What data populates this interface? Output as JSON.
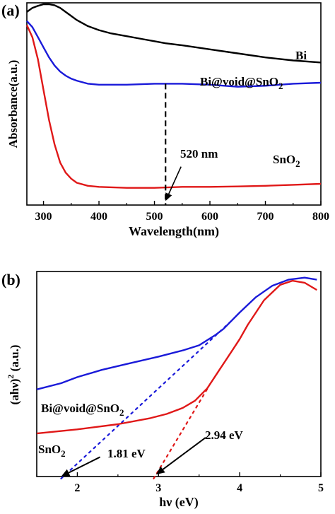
{
  "chart_data": [
    {
      "panel_label": "(a)",
      "type": "line",
      "xlabel": "Wavelength(nm)",
      "ylabel": "Absorbance(a.u.)",
      "xlim": [
        270,
        800
      ],
      "ylim": [
        0,
        1
      ],
      "xticks": [
        300,
        400,
        500,
        600,
        700,
        800
      ],
      "y_tick_labels": "none",
      "series": [
        {
          "name": "Bi",
          "color": "#000000",
          "x": [
            270,
            280,
            290,
            300,
            310,
            320,
            330,
            340,
            350,
            360,
            380,
            400,
            420,
            450,
            480,
            500,
            520,
            550,
            600,
            650,
            700,
            750,
            800
          ],
          "y": [
            0.955,
            0.975,
            0.985,
            0.993,
            0.993,
            0.988,
            0.975,
            0.955,
            0.935,
            0.915,
            0.885,
            0.865,
            0.85,
            0.835,
            0.82,
            0.81,
            0.8,
            0.79,
            0.77,
            0.75,
            0.73,
            0.715,
            0.705
          ]
        },
        {
          "name": "Bi@void@SnO2",
          "color": "#1a1ad9",
          "x": [
            270,
            280,
            290,
            300,
            310,
            320,
            330,
            340,
            350,
            360,
            380,
            400,
            450,
            500,
            550,
            600,
            650,
            700,
            750,
            800
          ],
          "y": [
            0.91,
            0.88,
            0.83,
            0.78,
            0.73,
            0.69,
            0.66,
            0.64,
            0.625,
            0.615,
            0.6,
            0.595,
            0.595,
            0.6,
            0.6,
            0.595,
            0.585,
            0.59,
            0.6,
            0.605
          ]
        },
        {
          "name": "SnO2",
          "color": "#e01818",
          "x": [
            270,
            280,
            290,
            300,
            310,
            320,
            330,
            340,
            350,
            360,
            380,
            400,
            450,
            500,
            550,
            600,
            650,
            700,
            750,
            800
          ],
          "y": [
            0.89,
            0.83,
            0.72,
            0.57,
            0.42,
            0.3,
            0.21,
            0.16,
            0.13,
            0.11,
            0.095,
            0.09,
            0.085,
            0.085,
            0.09,
            0.09,
            0.092,
            0.095,
            0.1,
            0.105
          ]
        }
      ],
      "annotations": {
        "dashed_line_x": 520,
        "dashed_line_top_y": 0.6,
        "dashed_line_bottom_y": 0.0,
        "arrow_tip": [
          520,
          0.02
        ],
        "arrow_from": [
          548,
          0.19
        ],
        "text_520": "520 nm",
        "label_bi": "Bi",
        "label_composite": "Bi@void@SnO",
        "label_composite_sub": "2",
        "label_sno2": "SnO",
        "label_sno2_sub": "2"
      }
    },
    {
      "panel_label": "(b)",
      "type": "line",
      "xlabel": "hν (eV)",
      "ylabel_main": "(ahν)",
      "ylabel_sup": "2",
      "ylabel_tail": " (a.u.)",
      "xlim": [
        1.5,
        5.0
      ],
      "ylim": [
        0,
        1
      ],
      "xticks": [
        2,
        3,
        4,
        5
      ],
      "y_tick_labels": "none",
      "series": [
        {
          "name": "Bi@void@SnO2",
          "color": "#1a1ad9",
          "x": [
            1.5,
            1.8,
            2.0,
            2.3,
            2.6,
            3.0,
            3.3,
            3.5,
            3.7,
            3.8,
            4.0,
            4.2,
            4.4,
            4.6,
            4.8,
            4.95
          ],
          "y": [
            0.425,
            0.455,
            0.485,
            0.52,
            0.548,
            0.585,
            0.615,
            0.64,
            0.69,
            0.72,
            0.8,
            0.875,
            0.93,
            0.96,
            0.97,
            0.96
          ]
        },
        {
          "name": "SnO2",
          "color": "#e01818",
          "x": [
            1.5,
            2.0,
            2.5,
            2.9,
            3.1,
            3.3,
            3.45,
            3.6,
            3.75,
            3.9,
            4.0,
            4.1,
            4.3,
            4.5,
            4.65,
            4.8,
            4.95
          ],
          "y": [
            0.21,
            0.23,
            0.255,
            0.285,
            0.305,
            0.335,
            0.37,
            0.43,
            0.52,
            0.61,
            0.67,
            0.74,
            0.86,
            0.935,
            0.955,
            0.945,
            0.91
          ]
        }
      ],
      "tangents": [
        {
          "color": "#1a1ad9",
          "x1": 1.8,
          "y1": -0.01,
          "x2": 3.9,
          "y2": 0.76
        },
        {
          "color": "#e01818",
          "x1": 2.94,
          "y1": -0.01,
          "x2": 3.62,
          "y2": 0.44
        }
      ],
      "annotations": {
        "text_181": "1.81 eV",
        "text_294": "2.94 eV",
        "arrow_181_from": [
          2.28,
          0.095
        ],
        "arrow_181_tip": [
          1.8,
          0.0
        ],
        "arrow_294_from": [
          3.58,
          0.19
        ],
        "arrow_294_tip": [
          2.97,
          0.01
        ],
        "label_composite": "Bi@void@SnO",
        "label_composite_sub": "2",
        "label_sno2": "SnO",
        "label_sno2_sub": "2"
      }
    }
  ]
}
